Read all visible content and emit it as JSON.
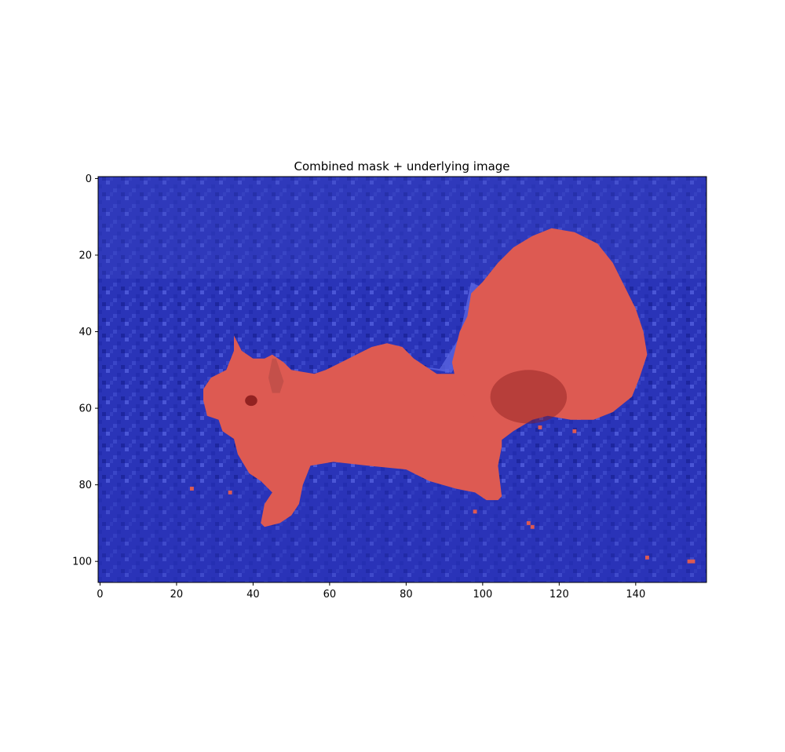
{
  "chart_data": {
    "type": "heatmap",
    "title": "Combined mask + underlying image",
    "xlabel": "",
    "ylabel": "",
    "xlim": [
      -0.5,
      158.5
    ],
    "ylim": [
      105.5,
      -0.5
    ],
    "y_inverted": true,
    "xticks": [
      0,
      20,
      40,
      60,
      80,
      100,
      120,
      140
    ],
    "yticks": [
      0,
      20,
      40,
      60,
      80,
      100
    ],
    "image_width": 159,
    "image_height": 106,
    "grid": false,
    "legend": "none",
    "colors": {
      "mask_true": "#dd5a52",
      "mask_true_dark": "#8a1c1c",
      "mask_false": "#2a34b8",
      "mask_false_light": "#5a64e0",
      "frame": "#000000"
    },
    "mask_regions": [
      {
        "label": "body",
        "polygon_data_coords": [
          [
            27,
            55
          ],
          [
            29,
            52
          ],
          [
            33,
            50
          ],
          [
            35,
            45
          ],
          [
            35,
            41
          ],
          [
            37,
            45
          ],
          [
            40,
            47
          ],
          [
            43,
            47
          ],
          [
            45,
            46
          ],
          [
            48,
            48
          ],
          [
            50,
            50
          ],
          [
            56,
            51
          ],
          [
            59,
            50
          ],
          [
            63,
            48
          ],
          [
            67,
            46
          ],
          [
            71,
            44
          ],
          [
            75,
            43
          ],
          [
            79,
            44
          ],
          [
            82,
            47
          ],
          [
            88,
            51
          ],
          [
            92,
            51
          ],
          [
            96,
            51
          ],
          [
            99,
            54
          ],
          [
            103,
            60
          ],
          [
            105,
            65
          ],
          [
            105,
            70
          ],
          [
            104,
            75
          ],
          [
            105,
            83
          ],
          [
            104,
            84
          ],
          [
            101,
            84
          ],
          [
            98,
            82
          ],
          [
            93,
            81
          ],
          [
            86,
            79
          ],
          [
            80,
            76
          ],
          [
            70,
            75
          ],
          [
            61,
            74
          ],
          [
            55,
            75
          ],
          [
            53,
            80
          ],
          [
            52,
            85
          ],
          [
            50,
            88
          ],
          [
            47,
            90
          ],
          [
            43,
            91
          ],
          [
            42,
            90
          ],
          [
            43,
            85
          ],
          [
            45,
            82
          ],
          [
            42,
            79
          ],
          [
            39,
            77
          ],
          [
            36,
            72
          ],
          [
            35,
            68
          ],
          [
            32,
            66
          ],
          [
            31,
            63
          ],
          [
            28,
            62
          ],
          [
            27,
            58
          ]
        ]
      },
      {
        "label": "tail",
        "polygon_data_coords": [
          [
            92,
            48
          ],
          [
            93,
            44
          ],
          [
            94,
            40
          ],
          [
            96,
            36
          ],
          [
            97,
            30
          ],
          [
            100,
            27
          ],
          [
            104,
            22
          ],
          [
            108,
            18
          ],
          [
            113,
            15
          ],
          [
            118,
            13
          ],
          [
            124,
            14
          ],
          [
            130,
            17
          ],
          [
            134,
            22
          ],
          [
            137,
            28
          ],
          [
            140,
            34
          ],
          [
            142,
            40
          ],
          [
            143,
            46
          ],
          [
            141,
            52
          ],
          [
            139,
            57
          ],
          [
            134,
            61
          ],
          [
            129,
            63
          ],
          [
            123,
            63
          ],
          [
            117,
            62
          ],
          [
            113,
            63
          ],
          [
            108,
            66
          ],
          [
            104,
            69
          ],
          [
            101,
            68
          ],
          [
            98,
            63
          ],
          [
            96,
            58
          ],
          [
            93,
            53
          ]
        ]
      },
      {
        "label": "ear",
        "polygon_data_coords": [
          [
            44,
            52
          ],
          [
            45,
            47
          ],
          [
            46,
            47
          ],
          [
            47,
            50
          ],
          [
            48,
            53
          ],
          [
            47,
            56
          ],
          [
            45,
            56
          ]
        ]
      }
    ],
    "mask_specks": [
      [
        24,
        81
      ],
      [
        34,
        82
      ],
      [
        98,
        87
      ],
      [
        112,
        90
      ],
      [
        113,
        91
      ],
      [
        115,
        65
      ],
      [
        124,
        66
      ],
      [
        143,
        99
      ],
      [
        154,
        100
      ],
      [
        155,
        100
      ]
    ]
  }
}
